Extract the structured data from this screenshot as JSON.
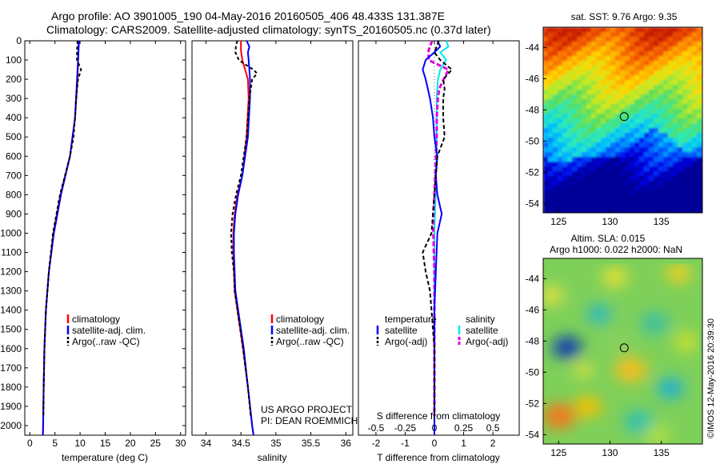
{
  "header": {
    "line1": "Argo profile: AO 3901005_190 04-May-2016 20160505_406 48.433S 131.387E",
    "line2": "Climatology: CARS2009. Satellite-adjusted climatology: synTS_20160505.nc (0.37d later)"
  },
  "credit": {
    "line1": "US ARGO PROJECT",
    "line2": "PI: DEAN ROEMMICH"
  },
  "watermark": "©IMOS 12-May-2016 20:39:30",
  "maps": {
    "sst_title": "sat. SST: 9.76 Argo: 9.35",
    "sla_title1": "Altim. SLA: 0.015",
    "sla_title2": "Argo h1000: 0.022 h2000: NaN",
    "xticks": [
      "125",
      "130",
      "135"
    ],
    "yticks": [
      "-44",
      "-46",
      "-48",
      "-50",
      "-52",
      "-54"
    ],
    "float_lon": 131.387,
    "float_lat": -48.433,
    "lon_range": [
      123.5,
      139
    ],
    "lat_range": [
      -54.6,
      -42.7
    ]
  },
  "colors": {
    "climatology": "#ff0000",
    "satellite": "#0000ff",
    "argo": "#000000",
    "satellite_s": "#00e5ee",
    "argo_s": "#e000e0"
  },
  "chart_data": [
    {
      "type": "line",
      "name": "temperature",
      "xlabel": "temperature (deg C)",
      "xlim": [
        -1,
        31
      ],
      "ylim": [
        2050,
        0
      ],
      "xticks": [
        "0",
        "5",
        "10",
        "15",
        "20",
        "25",
        "30"
      ],
      "yticks": [
        "0",
        "100",
        "200",
        "300",
        "400",
        "500",
        "600",
        "700",
        "800",
        "900",
        "1000",
        "1100",
        "1200",
        "1300",
        "1400",
        "1500",
        "1600",
        "1700",
        "1800",
        "1900",
        "2000"
      ],
      "legend": [
        "climatology",
        "satellite-adj. clim.",
        "Argo(..raw -QC)"
      ],
      "series": [
        {
          "name": "climatology",
          "depth": [
            0,
            100,
            200,
            400,
            600,
            800,
            1000,
            1200,
            1400,
            1600,
            1800,
            2000,
            2050
          ],
          "values": [
            9.7,
            9.6,
            9.5,
            9.0,
            8.0,
            6.1,
            4.7,
            3.8,
            3.2,
            2.9,
            2.75,
            2.65,
            2.6
          ]
        },
        {
          "name": "satellite-adj. clim.",
          "depth": [
            0,
            100,
            200,
            400,
            600,
            800,
            1000,
            1200,
            1400,
            1600,
            1800,
            2000,
            2050
          ],
          "values": [
            9.8,
            9.6,
            9.4,
            9.0,
            8.0,
            6.2,
            4.8,
            3.8,
            3.2,
            2.9,
            2.75,
            2.65,
            2.6
          ]
        },
        {
          "name": "Argo(..raw -QC)",
          "depth": [
            0,
            50,
            100,
            150,
            200,
            250,
            300,
            400,
            500,
            600,
            800,
            1000,
            1200,
            1400,
            1600,
            1800,
            1950
          ],
          "values": [
            9.5,
            9.4,
            9.4,
            10.2,
            9.6,
            9.4,
            9.2,
            9.0,
            8.7,
            8.0,
            6.0,
            4.6,
            3.8,
            3.2,
            2.9,
            2.75,
            2.7
          ]
        }
      ]
    },
    {
      "type": "line",
      "name": "salinity",
      "xlabel": "salinity",
      "xlim": [
        33.8,
        36.1
      ],
      "ylim": [
        2050,
        0
      ],
      "xticks": [
        "34",
        "34.5",
        "35",
        "35.5",
        "36"
      ],
      "legend": [
        "climatology",
        "satellite-adj. clim.",
        "Argo(..raw -QC)"
      ],
      "series": [
        {
          "name": "climatology",
          "depth": [
            0,
            50,
            100,
            150,
            200,
            300,
            500,
            700,
            800,
            900,
            1000,
            1100,
            1200,
            1300,
            1400,
            1600,
            1800,
            2000,
            2050
          ],
          "values": [
            34.5,
            34.5,
            34.52,
            34.56,
            34.6,
            34.61,
            34.58,
            34.52,
            34.45,
            34.41,
            34.39,
            34.39,
            34.4,
            34.41,
            34.45,
            34.53,
            34.6,
            34.66,
            34.68
          ]
        },
        {
          "name": "satellite-adj. clim.",
          "depth": [
            0,
            30,
            60,
            100,
            150,
            200,
            300,
            500,
            700,
            800,
            900,
            1000,
            1100,
            1200,
            1300,
            1400,
            1600,
            1800,
            2000,
            2050
          ],
          "values": [
            34.58,
            34.62,
            34.6,
            34.61,
            34.62,
            34.63,
            34.63,
            34.6,
            34.52,
            34.46,
            34.42,
            34.4,
            34.4,
            34.41,
            34.42,
            34.46,
            34.54,
            34.6,
            34.66,
            34.68
          ]
        },
        {
          "name": "Argo(..raw -QC)",
          "depth": [
            0,
            20,
            60,
            100,
            120,
            150,
            170,
            200,
            300,
            500,
            700,
            800,
            900,
            1000,
            1100,
            1200,
            1300,
            1400,
            1600,
            1800,
            1950
          ],
          "values": [
            34.45,
            34.43,
            34.42,
            34.47,
            34.55,
            34.68,
            34.73,
            34.66,
            34.62,
            34.58,
            34.5,
            34.43,
            34.38,
            34.36,
            34.37,
            34.4,
            34.41,
            34.45,
            34.53,
            34.6,
            34.64
          ]
        }
      ]
    },
    {
      "type": "line",
      "name": "differences",
      "xlabel": "T difference from climatology",
      "xlabel2": "S difference from climatology",
      "xlim": [
        -2.6,
        2.9
      ],
      "xlim_s": [
        -0.65,
        0.725
      ],
      "ylim": [
        2050,
        0
      ],
      "xticks": [
        "-2",
        "-1",
        "0",
        "1",
        "2"
      ],
      "xticks_s": [
        "-0.5",
        "-0.25",
        "0",
        "0.25",
        "0.5"
      ],
      "legend_titles": [
        "temperature",
        "salinity"
      ],
      "legend": [
        "satellite",
        "Argo(-adj)",
        "satellite",
        "Argo(-adj)"
      ],
      "series": [
        {
          "name": "T satellite",
          "depth": [
            0,
            30,
            60,
            100,
            150,
            200,
            300,
            400,
            500,
            600,
            700,
            800,
            900,
            1000,
            1200,
            1400,
            1600,
            1800,
            2000,
            2050
          ],
          "values": [
            0.1,
            0.2,
            0.0,
            -0.3,
            -0.4,
            -0.3,
            -0.15,
            -0.05,
            0.0,
            0.1,
            0.05,
            0.1,
            0.25,
            0.1,
            0.05,
            0.0,
            0.0,
            0.0,
            0.0,
            0.0
          ]
        },
        {
          "name": "T Argo(-adj)",
          "depth": [
            0,
            60,
            100,
            150,
            200,
            250,
            300,
            400,
            500,
            600,
            700,
            800,
            900,
            1000,
            1100,
            1200,
            1300,
            1400,
            1600,
            1800,
            1950
          ],
          "values": [
            0.15,
            0.0,
            0.2,
            0.6,
            0.3,
            0.35,
            0.3,
            0.3,
            0.35,
            0.1,
            0.05,
            0.0,
            -0.05,
            -0.1,
            -0.4,
            -0.3,
            -0.15,
            -0.1,
            0.0,
            0.0,
            0.0
          ]
        },
        {
          "name": "S satellite",
          "depth": [
            0,
            30,
            60,
            100,
            150,
            200,
            300,
            500,
            800,
            1000,
            1200,
            1500,
            1800,
            2050
          ],
          "values": [
            0.1,
            0.12,
            0.05,
            0.1,
            0.05,
            0.03,
            0.02,
            0.02,
            0.01,
            0.0,
            0.0,
            0.0,
            0.0,
            0.0
          ]
        },
        {
          "name": "S Argo(-adj)",
          "depth": [
            0,
            50,
            100,
            150,
            200,
            250,
            300,
            400,
            500,
            800,
            900,
            1000,
            1200,
            1400,
            1600,
            1800,
            1950
          ],
          "values": [
            -0.02,
            -0.05,
            -0.05,
            0.12,
            0.08,
            0.04,
            0.03,
            0.02,
            0.02,
            0.0,
            -0.01,
            -0.01,
            0.0,
            0.0,
            0.0,
            0.0,
            0.0
          ]
        }
      ]
    }
  ]
}
